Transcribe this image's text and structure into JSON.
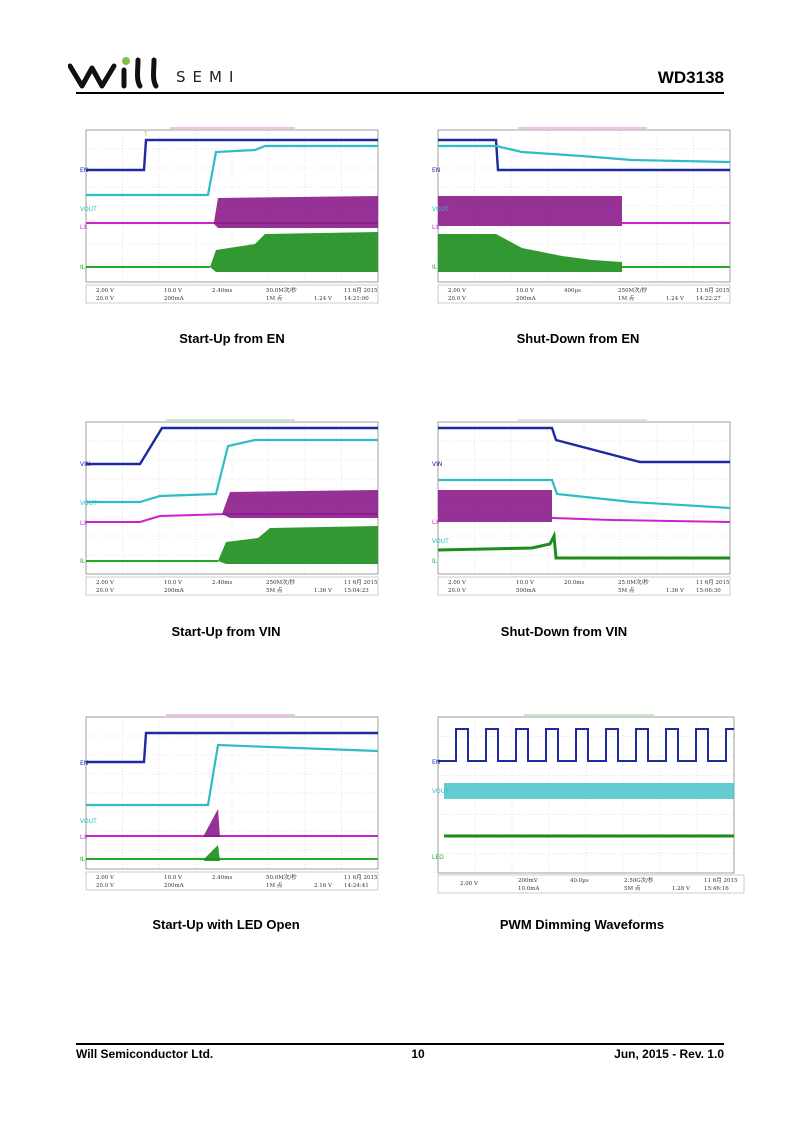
{
  "header": {
    "brand": "SEMI",
    "part_number": "WD3138"
  },
  "colors": {
    "ch1": "#1e2aa0",
    "ch2": "#2fbcc4",
    "ch3": "#cc22cc",
    "ch4": "#22aa22",
    "caption": "#000000"
  },
  "captions": {
    "startup_en": "Start-Up from EN",
    "shutdown_en": "Shut-Down from EN",
    "startup_vin": "Start-Up from VIN",
    "shutdown_vin": "Shut-Down from VIN",
    "startup_led_open": "Start-Up with LED Open",
    "pwm_dimming": "PWM Dimming Waveforms"
  },
  "scopes": [
    {
      "labels": [
        "EN",
        "VOUT",
        "LX",
        "IL"
      ],
      "readout": {
        "c1": "2.00 V",
        "c2": "10.0 V",
        "c3": "20.0 V",
        "c4": "200mA",
        "time": "2.40ms",
        "tb": "50.0M次/秒",
        "trig": "1.24 V",
        "date": "11 6月 2015",
        "clock": "14:21:00",
        "mem": "1M 点"
      }
    },
    {
      "labels": [
        "EN",
        "VOUT",
        "LX",
        "IL"
      ],
      "readout": {
        "c1": "2.00 V",
        "c2": "10.0 V",
        "c3": "20.0 V",
        "c4": "200mA",
        "time": "400µs",
        "tb": "250M次/秒",
        "trig": "1.24 V",
        "date": "11 6月 2015",
        "clock": "14:22:27",
        "mem": "1M 点"
      }
    },
    {
      "labels": [
        "VIN",
        "VOUT",
        "LX",
        "IL"
      ],
      "readout": {
        "c1": "2.00 V",
        "c2": "10.0 V",
        "c3": "20.0 V",
        "c4": "200mA",
        "time": "2.40ms",
        "tb": "250M次/秒",
        "trig": "1.36 V",
        "date": "11 6月 2015",
        "clock": "15:04:23",
        "mem": "5M 点"
      }
    },
    {
      "labels": [
        "VIN",
        "LX",
        "VOUT",
        "IL"
      ],
      "readout": {
        "c1": "2.00 V",
        "c2": "10.0 V",
        "c3": "20.0 V",
        "c4": "500mA",
        "time": "20.0ms",
        "tb": "25.0M次/秒",
        "trig": "1.36 V",
        "date": "11 6月 2015",
        "clock": "15:06:30",
        "mem": "5M 点"
      }
    },
    {
      "labels": [
        "EN",
        "VOUT",
        "LX",
        "IL"
      ],
      "readout": {
        "c1": "2.00 V",
        "c2": "10.0 V",
        "c3": "20.0 V",
        "c4": "200mA",
        "time": "2.40ms",
        "tb": "50.0M次/秒",
        "trig": "2.16 V",
        "date": "11 6月 2015",
        "clock": "14:24:41",
        "mem": "1M 点"
      }
    },
    {
      "labels": [
        "EN",
        "VOUT",
        "LED"
      ],
      "readout": {
        "c1": "2.00 V",
        "c2": "200mV",
        "c3": "",
        "c4": "10.0mA",
        "time": "40.0µs",
        "tb": "2.50G次/秒",
        "trig": "1.28 V",
        "date": "11 6月 2015",
        "clock": "15:46:16",
        "mem": "5M 点"
      }
    }
  ],
  "footer": {
    "company": "Will Semiconductor Ltd.",
    "page_number": "10",
    "revision": "Jun, 2015 - Rev. 1.0"
  }
}
